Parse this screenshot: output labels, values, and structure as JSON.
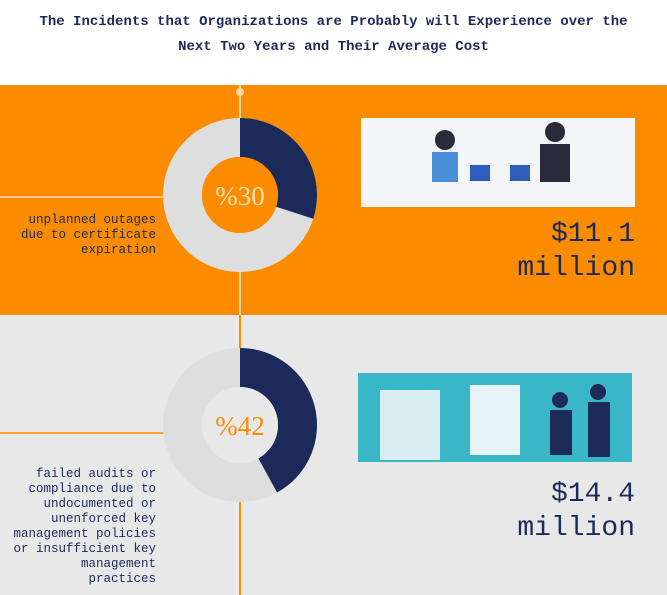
{
  "header": {
    "title": "The Incidents that Organizations are Probably will Experience over the Next Two Years and Their Average Cost"
  },
  "items": [
    {
      "description": "unplanned outages due to certificate expiration",
      "percent": 30,
      "percent_label": "%30",
      "cost": "$11.1 million"
    },
    {
      "description": "failed audits or compliance due to undocumented or unenforced key management policies or insufficient key management practices",
      "percent": 42,
      "percent_label": "%42",
      "cost": "$14.4 million"
    }
  ]
}
